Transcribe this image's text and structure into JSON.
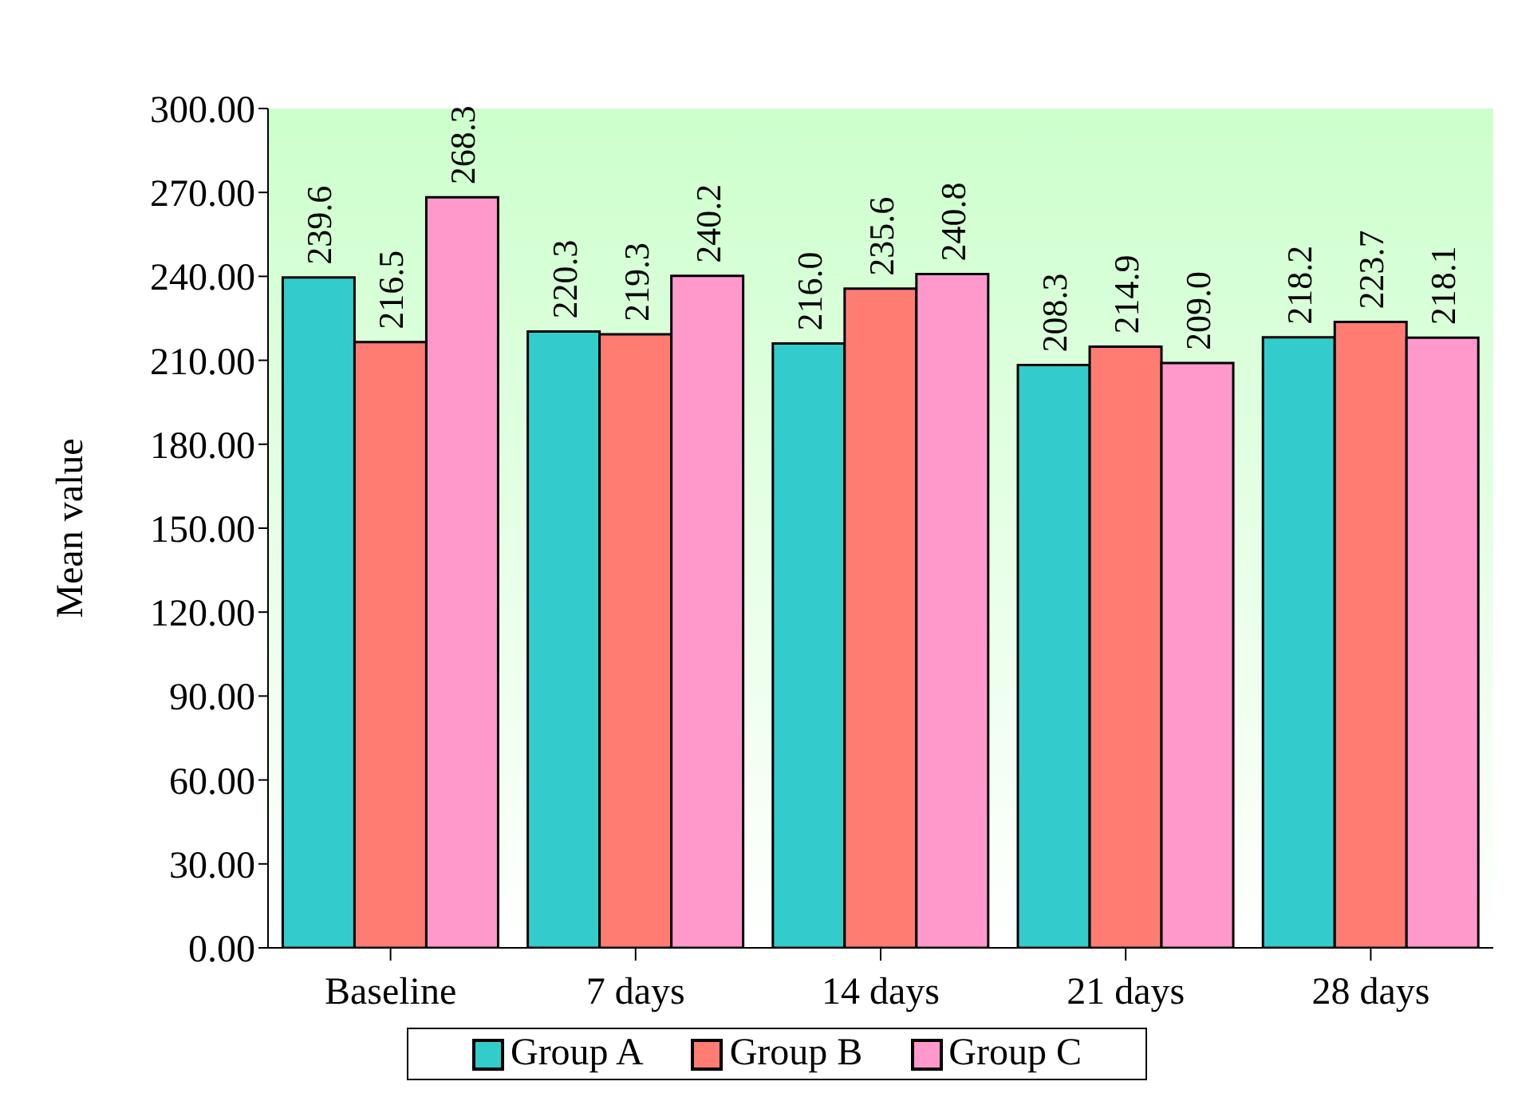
{
  "chart_data": {
    "type": "bar",
    "ylabel": "Mean value",
    "categories": [
      "Baseline",
      "7 days",
      "14 days",
      "21 days",
      "28 days"
    ],
    "series": [
      {
        "name": "Group A",
        "color": "#33cccc",
        "values": [
          239.6,
          220.3,
          216.0,
          208.3,
          218.2
        ],
        "value_labels": [
          "239.6",
          "220.3",
          "216.0",
          "208.3",
          "218.2"
        ]
      },
      {
        "name": "Group B",
        "color": "#ff7c73",
        "values": [
          216.5,
          219.3,
          235.6,
          214.9,
          223.7
        ],
        "value_labels": [
          "216.5",
          "219.3",
          "235.6",
          "214.9",
          "223.7"
        ]
      },
      {
        "name": "Group C",
        "color": "#ff99cc",
        "values": [
          268.3,
          240.2,
          240.8,
          209.0,
          218.1
        ],
        "value_labels": [
          "268.3",
          "240.2",
          "240.8",
          "209.0",
          "218.1"
        ]
      }
    ],
    "ylim": [
      0,
      300
    ],
    "yticks": [
      {
        "value": 0,
        "label": "0.00"
      },
      {
        "value": 30,
        "label": "30.00"
      },
      {
        "value": 60,
        "label": "60.00"
      },
      {
        "value": 90,
        "label": "90.00"
      },
      {
        "value": 120,
        "label": "120.00"
      },
      {
        "value": 150,
        "label": "150.00"
      },
      {
        "value": 180,
        "label": "180.00"
      },
      {
        "value": 210,
        "label": "210.00"
      },
      {
        "value": 240,
        "label": "240.00"
      },
      {
        "value": 270,
        "label": "270.00"
      },
      {
        "value": 300,
        "label": "300.00"
      }
    ],
    "legend": "bottom",
    "grid": false
  }
}
